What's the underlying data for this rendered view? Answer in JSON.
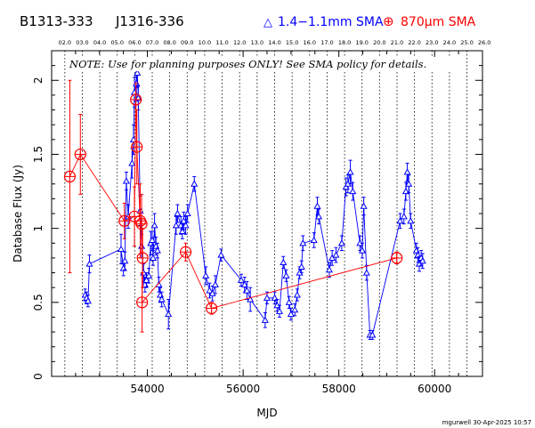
{
  "header": {
    "source_names": [
      "B1313-333",
      "J1316-336"
    ],
    "legend_blue_marker": "△",
    "legend_blue": "1.4−1.1mm SMA",
    "legend_red_marker": "⊕",
    "legend_red": "870μm SMA"
  },
  "note": "NOTE: Use for planning purposes ONLY!  See SMA policy for details.",
  "footer": "mgurwell 30-Apr-2025 10:57",
  "colors": {
    "blue": "#0000ff",
    "red": "#ff0000",
    "axes": "#000000"
  },
  "chart_data": {
    "type": "scatter",
    "title": "",
    "xlabel": "MJD",
    "ylabel": "Database Flux (Jy)",
    "xlim": [
      52000,
      61000
    ],
    "ylim": [
      0,
      2.2
    ],
    "x_ticks": [
      54000,
      56000,
      58000,
      60000
    ],
    "y_ticks": [
      0,
      0.5,
      1,
      1.5,
      2
    ],
    "top_axis_labels": [
      "02.0",
      "03.0",
      "04.0",
      "05.0",
      "06.0",
      "07.0",
      "08.0",
      "09.0",
      "10.0",
      "11.0",
      "12.0",
      "13.0",
      "14.0",
      "15.0",
      "16.0",
      "17.0",
      "18.0",
      "19.0",
      "20.0",
      "21.0",
      "22.0",
      "23.0",
      "24.0",
      "25.0",
      "26.0"
    ],
    "top_axis_mjd": [
      52276,
      52641,
      53006,
      53371,
      53736,
      54101,
      54466,
      54832,
      55197,
      55562,
      55927,
      56293,
      56658,
      57023,
      57388,
      57754,
      58119,
      58484,
      58849,
      59215,
      59580,
      59945,
      60310,
      60676,
      61041
    ],
    "series": [
      {
        "name": "1.4−1.1mm SMA",
        "marker": "triangle",
        "color": "#0000ff",
        "connected": true,
        "points": [
          [
            52700,
            0.55,
            0.04
          ],
          [
            52730,
            0.53,
            0.04
          ],
          [
            52760,
            0.51,
            0.04
          ],
          [
            52790,
            0.76,
            0.06
          ],
          [
            53450,
            0.86,
            0.1
          ],
          [
            53500,
            0.73,
            0.05
          ],
          [
            53530,
            0.78,
            0.06
          ],
          [
            53560,
            1.32,
            0.06
          ],
          [
            53600,
            1.08,
            0.08
          ],
          [
            53680,
            1.44,
            0.1
          ],
          [
            53710,
            1.6,
            0.1
          ],
          [
            53730,
            1.92,
            0.1
          ],
          [
            53770,
            1.98,
            0.12
          ],
          [
            53790,
            2.05,
            0.1
          ],
          [
            53810,
            1.88,
            0.08
          ],
          [
            53850,
            1.12,
            0.1
          ],
          [
            53880,
            0.88,
            0.08
          ],
          [
            53920,
            0.7,
            0.06
          ],
          [
            53950,
            0.62,
            0.05
          ],
          [
            53980,
            0.65,
            0.05
          ],
          [
            54030,
            0.68,
            0.05
          ],
          [
            54070,
            0.9,
            0.08
          ],
          [
            54100,
            0.92,
            0.06
          ],
          [
            54120,
            0.8,
            0.05
          ],
          [
            54150,
            1.02,
            0.08
          ],
          [
            54180,
            0.88,
            0.06
          ],
          [
            54210,
            0.85,
            0.05
          ],
          [
            54240,
            0.62,
            0.05
          ],
          [
            54270,
            0.55,
            0.05
          ],
          [
            54300,
            0.52,
            0.05
          ],
          [
            54440,
            0.42,
            0.1
          ],
          [
            54600,
            1.02,
            0.06
          ],
          [
            54630,
            1.1,
            0.06
          ],
          [
            54700,
            1.02,
            0.06
          ],
          [
            54730,
            0.98,
            0.05
          ],
          [
            54760,
            1.05,
            0.06
          ],
          [
            54800,
            1.02,
            0.06
          ],
          [
            54840,
            1.1,
            0.06
          ],
          [
            54980,
            1.3,
            0.05
          ],
          [
            55220,
            0.68,
            0.06
          ],
          [
            55300,
            0.58,
            0.05
          ],
          [
            55360,
            0.56,
            0.05
          ],
          [
            55420,
            0.62,
            0.06
          ],
          [
            55540,
            0.82,
            0.04
          ],
          [
            55960,
            0.65,
            0.04
          ],
          [
            56030,
            0.62,
            0.05
          ],
          [
            56080,
            0.58,
            0.06
          ],
          [
            56150,
            0.52,
            0.08
          ],
          [
            56460,
            0.38,
            0.05
          ],
          [
            56500,
            0.53,
            0.04
          ],
          [
            56660,
            0.53,
            0.04
          ],
          [
            56710,
            0.48,
            0.04
          ],
          [
            56760,
            0.44,
            0.04
          ],
          [
            56840,
            0.77,
            0.04
          ],
          [
            56900,
            0.68,
            0.04
          ],
          [
            56960,
            0.5,
            0.04
          ],
          [
            57000,
            0.42,
            0.04
          ],
          [
            57080,
            0.45,
            0.04
          ],
          [
            57130,
            0.55,
            0.04
          ],
          [
            57180,
            0.7,
            0.04
          ],
          [
            57220,
            0.74,
            0.04
          ],
          [
            57250,
            0.9,
            0.05
          ],
          [
            57480,
            0.92,
            0.05
          ],
          [
            57550,
            1.15,
            0.06
          ],
          [
            57580,
            1.08,
            0.05
          ],
          [
            57800,
            0.72,
            0.05
          ],
          [
            57860,
            0.8,
            0.05
          ],
          [
            57940,
            0.82,
            0.05
          ],
          [
            58060,
            0.9,
            0.05
          ],
          [
            58150,
            1.28,
            0.06
          ],
          [
            58190,
            1.3,
            0.06
          ],
          [
            58240,
            1.38,
            0.08
          ],
          [
            58290,
            1.25,
            0.06
          ],
          [
            58440,
            0.9,
            0.05
          ],
          [
            58490,
            0.85,
            0.05
          ],
          [
            58520,
            1.15,
            0.06
          ],
          [
            58580,
            0.7,
            0.05
          ],
          [
            58650,
            0.28,
            0.03
          ],
          [
            58700,
            0.28,
            0.03
          ],
          [
            59280,
            1.05,
            0.05
          ],
          [
            59360,
            1.08,
            0.05
          ],
          [
            59400,
            1.25,
            0.06
          ],
          [
            59430,
            1.38,
            0.06
          ],
          [
            59460,
            1.3,
            0.06
          ],
          [
            59500,
            1.05,
            0.05
          ],
          [
            59620,
            0.85,
            0.05
          ],
          [
            59650,
            0.82,
            0.05
          ],
          [
            59680,
            0.76,
            0.05
          ],
          [
            59720,
            0.8,
            0.05
          ],
          [
            59750,
            0.78,
            0.05
          ]
        ]
      },
      {
        "name": "870μm SMA",
        "marker": "circle-plus",
        "color": "#ff0000",
        "connected": true,
        "points": [
          [
            52380,
            1.35,
            0.65
          ],
          [
            52600,
            1.5,
            0.27
          ],
          [
            53520,
            1.05,
            0.12
          ],
          [
            53730,
            1.08,
            0.2
          ],
          [
            53760,
            1.87,
            0.11
          ],
          [
            53780,
            1.55,
            0.25
          ],
          [
            53850,
            1.05,
            0.25
          ],
          [
            53880,
            1.03,
            0.2
          ],
          [
            53900,
            0.8,
            0.2
          ],
          [
            53890,
            0.5,
            0.2
          ],
          [
            54800,
            0.84,
            0.06
          ],
          [
            55340,
            0.46,
            0.04
          ],
          [
            59210,
            0.8,
            0.04
          ]
        ]
      }
    ]
  }
}
